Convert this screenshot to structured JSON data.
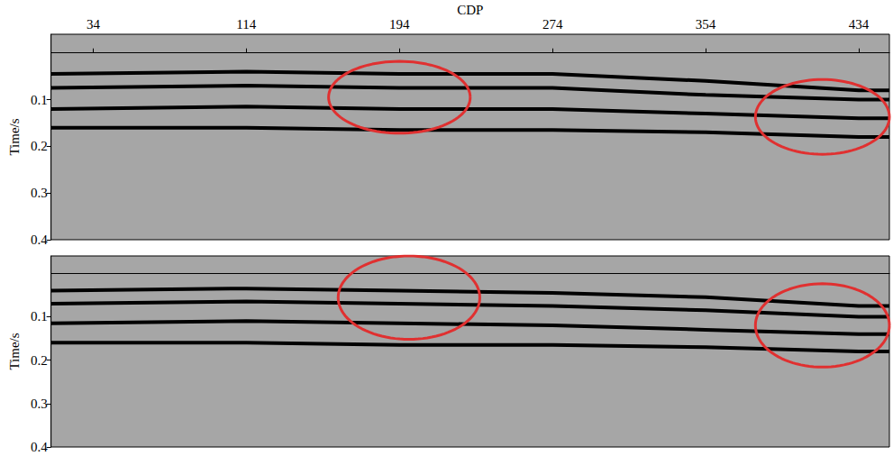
{
  "chart_data": [
    {
      "type": "line",
      "x_label": "CDP",
      "y_label": "Time/s",
      "xlim": [
        12,
        450
      ],
      "xticks": [
        34,
        114,
        194,
        274,
        354,
        434
      ],
      "ylim": [
        -0.04,
        0.4
      ],
      "yticks": [
        0.1,
        0.2,
        0.3,
        0.4
      ],
      "grid": false,
      "x": [
        12,
        114,
        194,
        274,
        354,
        434,
        450
      ],
      "series": [
        {
          "color": "#000000",
          "values": [
            0.045,
            0.04,
            0.045,
            0.045,
            0.06,
            0.08,
            0.08
          ]
        },
        {
          "color": "#000000",
          "values": [
            0.075,
            0.07,
            0.075,
            0.075,
            0.09,
            0.1,
            0.1
          ]
        },
        {
          "color": "#000000",
          "values": [
            0.12,
            0.115,
            0.12,
            0.12,
            0.13,
            0.14,
            0.14
          ]
        },
        {
          "color": "#000000",
          "values": [
            0.16,
            0.16,
            0.165,
            0.165,
            0.17,
            0.18,
            0.18
          ]
        }
      ],
      "annotations": [
        {
          "type": "ellipse",
          "x": 194,
          "y": 0.095,
          "rx": 37,
          "ry": 0.077,
          "color": "#e03030"
        },
        {
          "type": "ellipse",
          "x": 415,
          "y": 0.137,
          "rx": 35,
          "ry": 0.08,
          "color": "#e03030"
        }
      ]
    },
    {
      "type": "line",
      "y_label": "Time/s",
      "xlim": [
        12,
        450
      ],
      "ylim": [
        -0.04,
        0.4
      ],
      "yticks": [
        0.1,
        0.2,
        0.3,
        0.4
      ],
      "grid": false,
      "tick_labels": "y",
      "x": [
        12,
        114,
        194,
        274,
        354,
        434,
        450
      ],
      "series": [
        {
          "color": "#000000",
          "values": [
            0.04,
            0.035,
            0.04,
            0.045,
            0.055,
            0.075,
            0.075
          ]
        },
        {
          "color": "#000000",
          "values": [
            0.07,
            0.065,
            0.07,
            0.075,
            0.085,
            0.1,
            0.1
          ]
        },
        {
          "color": "#000000",
          "values": [
            0.115,
            0.11,
            0.115,
            0.12,
            0.13,
            0.14,
            0.14
          ]
        },
        {
          "color": "#000000",
          "values": [
            0.16,
            0.16,
            0.165,
            0.165,
            0.17,
            0.18,
            0.18
          ]
        }
      ],
      "annotations": [
        {
          "type": "ellipse",
          "x": 199,
          "y": 0.056,
          "rx": 37,
          "ry": 0.096,
          "color": "#e03030"
        },
        {
          "type": "ellipse",
          "x": 415,
          "y": 0.12,
          "rx": 35,
          "ry": 0.096,
          "color": "#e03030"
        }
      ]
    }
  ]
}
